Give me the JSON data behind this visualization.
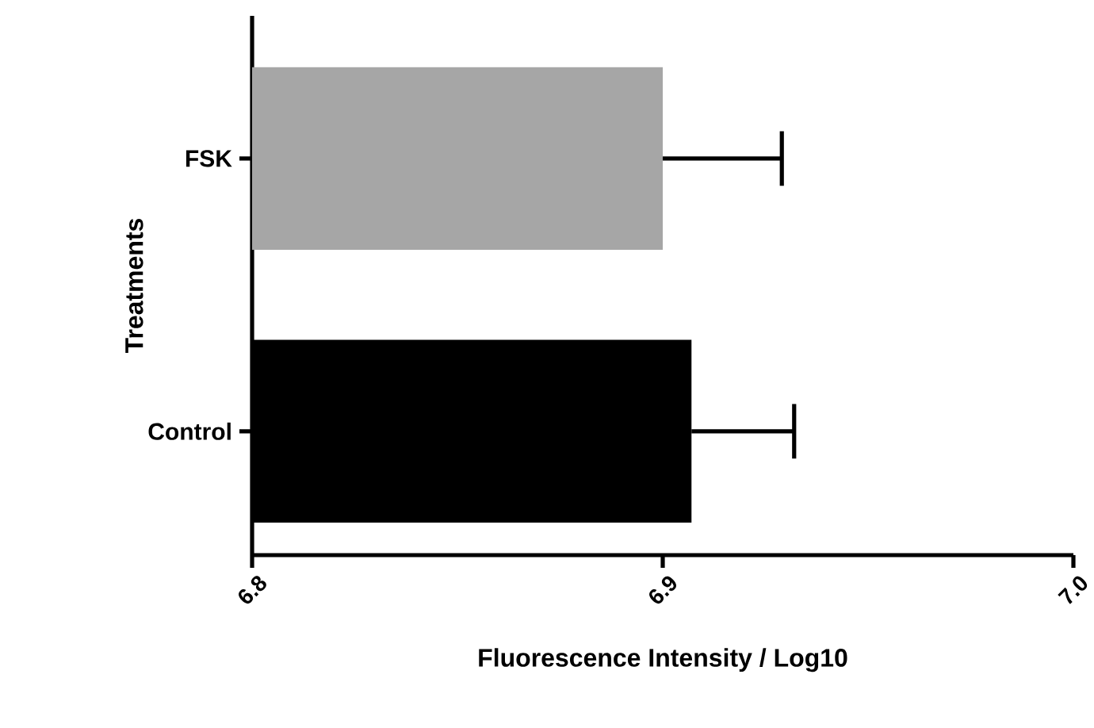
{
  "chart_data": {
    "type": "bar",
    "orientation": "horizontal",
    "xlabel": "Fluorescence Intensity / Log10",
    "ylabel": "Treatments",
    "categories": [
      "FSK",
      "Control"
    ],
    "values": [
      6.9,
      6.907
    ],
    "colors": [
      "#a6a6a6",
      "#000000"
    ],
    "errors": [
      [
        6.9,
        6.929
      ],
      [
        6.907,
        6.932
      ]
    ],
    "xlim": [
      6.8,
      7.0
    ],
    "xticks": [
      6.8,
      6.9,
      {
        "value": 7.0,
        "label": "7.0"
      }
    ],
    "grid": false
  }
}
